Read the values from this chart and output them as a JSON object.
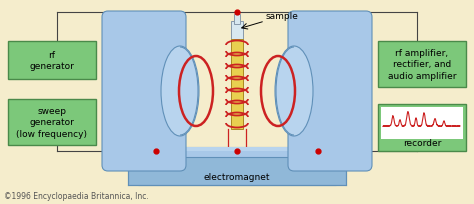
{
  "bg_color": "#f5edcc",
  "box_fill": "#7cc87a",
  "box_edge": "#4a8a4a",
  "magnet_fill": "#a8c8e8",
  "magnet_fill2": "#b8d4ee",
  "magnet_edge": "#6090b8",
  "coil_color": "#cc2222",
  "wire_color": "#444444",
  "sample_fill": "#e8d050",
  "red_dot": "#cc0000",
  "copyright_text": "©1996 Encyclopaedia Britannica, Inc.",
  "electromagnet_label": "electromagnet",
  "sample_label": "sample",
  "rf_gen_label": "rf\ngenerator",
  "sweep_gen_label": "sweep\ngenerator\n(low frequency)",
  "rf_amp_label": "rf amplifier,\nrectifier, and\naudio amplifier",
  "recorder_label": "recorder",
  "label_fontsize": 6.5,
  "small_fontsize": 5.5
}
